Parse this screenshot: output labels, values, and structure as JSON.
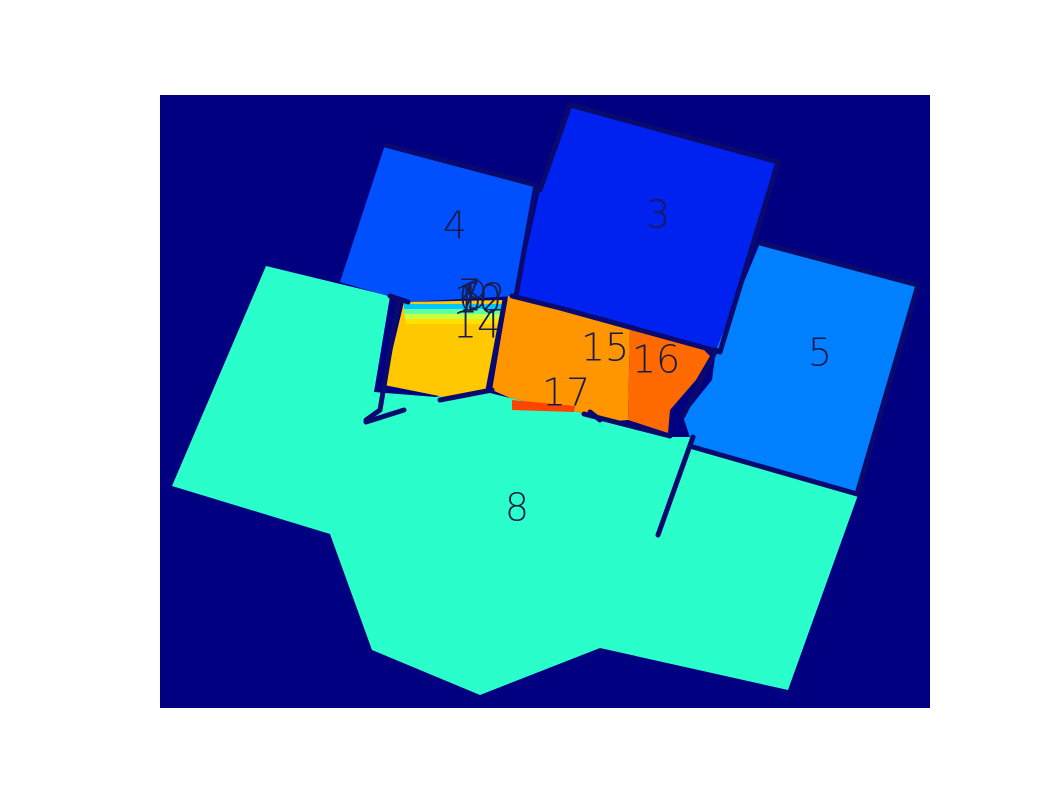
{
  "figure": {
    "background": "#000080",
    "label_color": "#1a1a4a",
    "wall_color": "#0a0a6e"
  },
  "rooms": [
    {
      "id": "3",
      "label": "3",
      "color": "#0022f0"
    },
    {
      "id": "4",
      "label": "4",
      "color": "#0050ff"
    },
    {
      "id": "5",
      "label": "5",
      "color": "#0080ff"
    },
    {
      "id": "8",
      "label": "8",
      "color": "#2affcc"
    },
    {
      "id": "14",
      "label": "14",
      "color": "#ffc800"
    },
    {
      "id": "15",
      "label": "15",
      "color": "#ff9600"
    },
    {
      "id": "16",
      "label": "16",
      "color": "#ff6a00"
    },
    {
      "id": "17",
      "label": "17",
      "color": "#ff4400"
    }
  ],
  "overlapping_labels": [
    "6",
    "10",
    "12",
    "7",
    "9"
  ],
  "legend_colors": {
    "strip": [
      "#00c8ff",
      "#60ffa0",
      "#c8ff40",
      "#ffe000"
    ]
  }
}
